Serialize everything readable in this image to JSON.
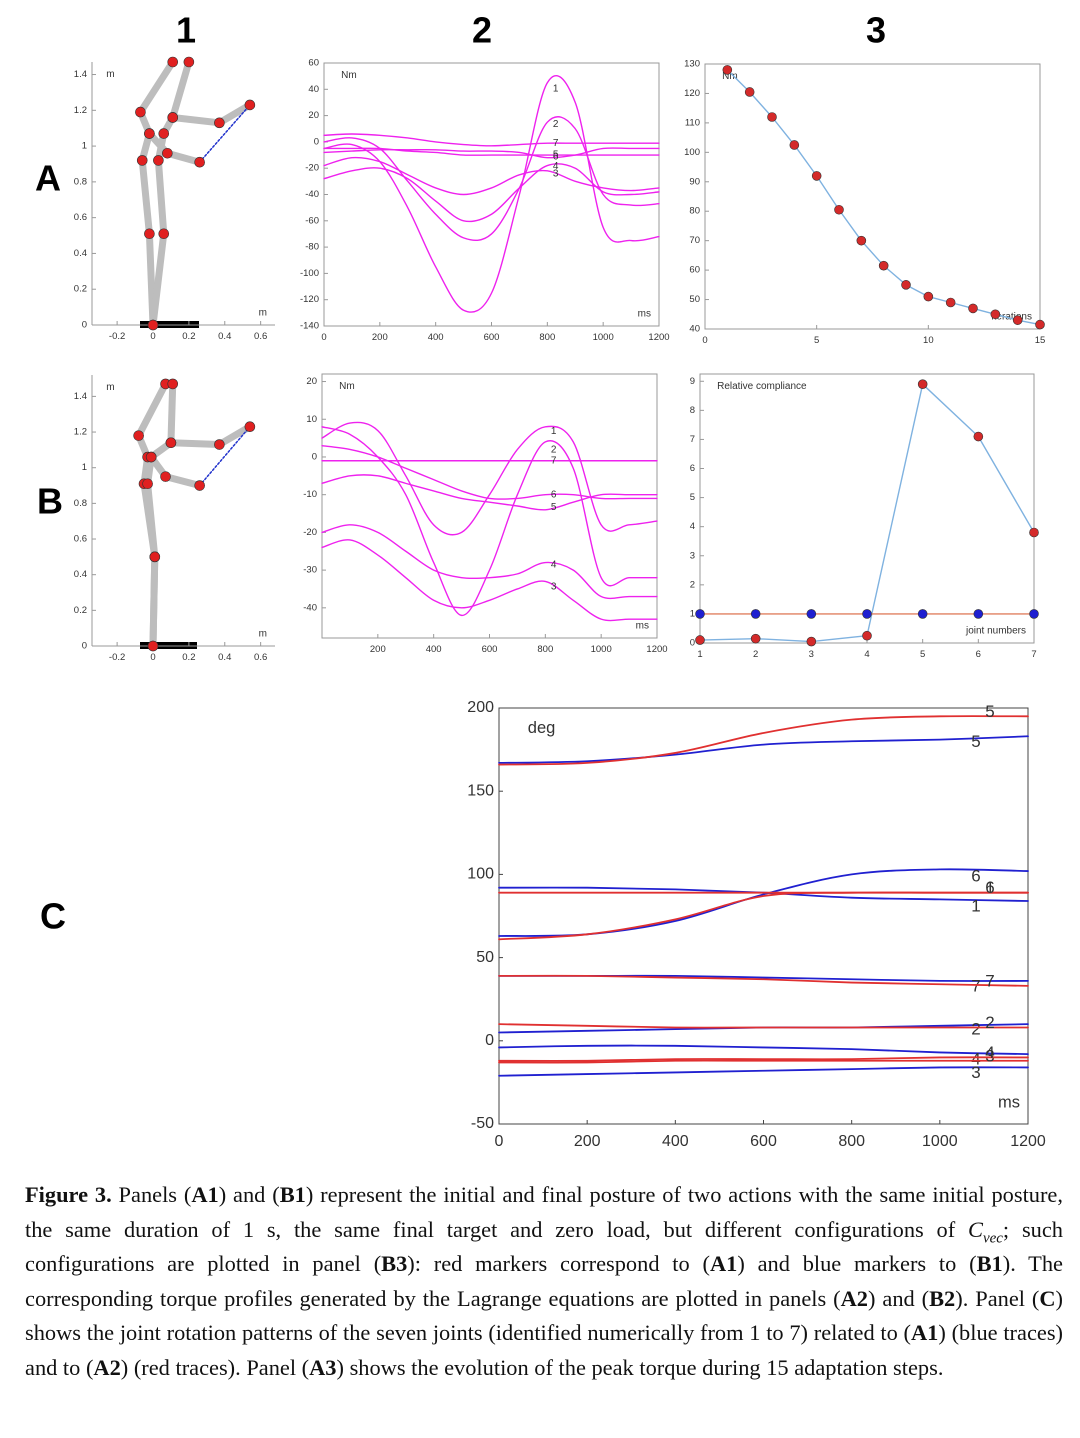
{
  "column_labels": [
    "1",
    "2",
    "3"
  ],
  "row_labels": [
    "A",
    "B",
    "C"
  ],
  "chart_data": [
    {
      "type": "line",
      "xlim": [
        -0.34,
        0.68
      ],
      "ylim": [
        0,
        1.47
      ],
      "xticks": [
        -0.2,
        0,
        0.2,
        0.4,
        0.6
      ],
      "yticks": [
        0,
        0.2,
        0.4,
        0.6,
        0.8,
        1,
        1.2,
        1.4
      ],
      "xlabel": "m",
      "ylabel": "m",
      "box": false,
      "markers": true,
      "line_width": 7,
      "series": [
        {
          "color": "#bdbdbd",
          "marker_color": "#e02020",
          "x": [
            0,
            -0.02,
            -0.06,
            -0.02,
            -0.07,
            0.11
          ],
          "values": [
            0,
            0.51,
            0.92,
            1.07,
            1.19,
            1.47
          ]
        },
        {
          "color": "#bdbdbd",
          "marker_color": "#e02020",
          "x": [
            0,
            0.06,
            0.03,
            0.06,
            0.11,
            0.2
          ],
          "values": [
            0,
            0.51,
            0.92,
            1.07,
            1.16,
            1.47
          ]
        },
        {
          "color": "#bdbdbd",
          "marker_color": "#e02020",
          "x": [
            -0.02,
            0.08,
            0.26
          ],
          "values": [
            1.07,
            0.96,
            0.91
          ]
        },
        {
          "color": "#bdbdbd",
          "marker_color": "#e02020",
          "x": [
            0.11,
            0.37,
            0.54
          ],
          "values": [
            1.16,
            1.13,
            1.23
          ]
        },
        {
          "color": "#2233cc",
          "dash": true,
          "x": [
            0.26,
            0.54
          ],
          "values": [
            0.91,
            1.23
          ]
        }
      ]
    },
    {
      "type": "line",
      "xlim": [
        0,
        1200
      ],
      "ylim": [
        -140,
        60
      ],
      "xticks": [
        0,
        200,
        400,
        600,
        800,
        1000,
        1200
      ],
      "yticks": [
        -140,
        -120,
        -100,
        -80,
        -60,
        -40,
        -20,
        0,
        20,
        40,
        60
      ],
      "xlabel": "ms",
      "ylabel": "Nm",
      "box": true,
      "smooth": true,
      "series_labels": "inline",
      "x": [
        0,
        100,
        200,
        300,
        400,
        500,
        600,
        700,
        800,
        900,
        1000,
        1100,
        1200
      ],
      "series": [
        {
          "name": "1",
          "color": "#ee22ee",
          "values": [
            -5,
            -2,
            -15,
            -50,
            -95,
            -128,
            -115,
            -40,
            45,
            30,
            -65,
            -75,
            -72
          ]
        },
        {
          "name": "2",
          "color": "#ee22ee",
          "values": [
            0,
            3,
            -5,
            -30,
            -55,
            -73,
            -70,
            -35,
            15,
            10,
            -40,
            -48,
            -47
          ]
        },
        {
          "name": "3",
          "color": "#ee22ee",
          "values": [
            -18,
            -12,
            -15,
            -25,
            -35,
            -40,
            -35,
            -25,
            -22,
            -30,
            -35,
            -37,
            -35
          ]
        },
        {
          "name": "4",
          "color": "#ee22ee",
          "values": [
            -28,
            -22,
            -20,
            -28,
            -45,
            -60,
            -55,
            -35,
            -18,
            -20,
            -38,
            -40,
            -38
          ]
        },
        {
          "name": "5",
          "color": "#ee22ee",
          "values": [
            -5,
            -5,
            -5,
            -7,
            -8,
            -10,
            -10,
            -10,
            -10,
            -10,
            -10,
            -10,
            -10
          ]
        },
        {
          "name": "6",
          "color": "#ee22ee",
          "values": [
            -8,
            -7,
            -6,
            -6,
            -6,
            -7,
            -7,
            -8,
            -12,
            -10,
            -5,
            -5,
            -5
          ]
        },
        {
          "name": "7",
          "color": "#ee22ee",
          "values": [
            5,
            6,
            5,
            3,
            0,
            -2,
            -3,
            -2,
            -1,
            -1,
            -1,
            -1,
            -1
          ]
        }
      ]
    },
    {
      "type": "line",
      "xlim": [
        0,
        15
      ],
      "ylim": [
        40,
        130
      ],
      "xticks": [
        0,
        5,
        10,
        15
      ],
      "yticks": [
        40,
        50,
        60,
        70,
        80,
        90,
        100,
        110,
        120,
        130
      ],
      "xlabel": "iterations",
      "ylabel": "Nm",
      "box": true,
      "markers": true,
      "x": [
        1,
        2,
        3,
        4,
        5,
        6,
        7,
        8,
        9,
        10,
        11,
        12,
        13,
        14,
        15
      ],
      "series": [
        {
          "color": "#7fb2e0",
          "marker_color": "#d42a2a",
          "values": [
            128,
            120.5,
            112,
            102.5,
            92,
            80.5,
            70,
            61.5,
            55,
            51,
            49,
            47,
            45,
            43,
            41.5
          ]
        }
      ]
    },
    {
      "type": "line",
      "xlim": [
        -0.34,
        0.68
      ],
      "ylim": [
        0,
        1.52
      ],
      "xticks": [
        -0.2,
        0,
        0.2,
        0.4,
        0.6
      ],
      "yticks": [
        0,
        0.2,
        0.4,
        0.6,
        0.8,
        1,
        1.2,
        1.4
      ],
      "xlabel": "m",
      "ylabel": "m",
      "box": false,
      "markers": true,
      "line_width": 7,
      "series": [
        {
          "color": "#bdbdbd",
          "marker_color": "#e02020",
          "x": [
            0,
            0.01,
            -0.05,
            -0.03,
            -0.08,
            0.07
          ],
          "values": [
            0,
            0.5,
            0.91,
            1.06,
            1.18,
            1.47
          ]
        },
        {
          "color": "#bdbdbd",
          "marker_color": "#e02020",
          "x": [
            0,
            0.01,
            -0.03,
            -0.01,
            0.1,
            0.11
          ],
          "values": [
            0,
            0.5,
            0.91,
            1.06,
            1.14,
            1.47
          ]
        },
        {
          "color": "#bdbdbd",
          "marker_color": "#e02020",
          "x": [
            -0.01,
            0.07,
            0.26
          ],
          "values": [
            1.06,
            0.95,
            0.9
          ]
        },
        {
          "color": "#bdbdbd",
          "marker_color": "#e02020",
          "x": [
            0.1,
            0.37,
            0.54
          ],
          "values": [
            1.14,
            1.13,
            1.23
          ]
        },
        {
          "color": "#2233cc",
          "dash": true,
          "x": [
            0.26,
            0.54
          ],
          "values": [
            0.9,
            1.23
          ]
        }
      ]
    },
    {
      "type": "line",
      "xlim": [
        0,
        1200
      ],
      "ylim": [
        -48,
        22
      ],
      "xticks": [
        200,
        400,
        600,
        800,
        1000,
        1200
      ],
      "yticks": [
        -40,
        -30,
        -20,
        -10,
        0,
        10,
        20
      ],
      "xlabel": "ms",
      "ylabel": "Nm",
      "box": true,
      "smooth": true,
      "series_labels": "inline",
      "x": [
        0,
        100,
        200,
        300,
        400,
        500,
        600,
        700,
        800,
        900,
        1000,
        1100,
        1200
      ],
      "series": [
        {
          "name": "1",
          "color": "#ee22ee",
          "values": [
            5,
            9,
            7,
            -5,
            -18,
            -20,
            -10,
            2,
            8,
            4,
            -18,
            -18,
            -17
          ]
        },
        {
          "name": "2",
          "color": "#ee22ee",
          "values": [
            8,
            6,
            0,
            -10,
            -28,
            -42,
            -30,
            -10,
            4,
            -3,
            -32,
            -32,
            -32
          ]
        },
        {
          "name": "3",
          "color": "#ee22ee",
          "values": [
            -24,
            -22,
            -26,
            -32,
            -38,
            -40,
            -38,
            -35,
            -33,
            -38,
            -43,
            -43,
            -43
          ]
        },
        {
          "name": "4",
          "color": "#ee22ee",
          "values": [
            -20,
            -18,
            -20,
            -25,
            -30,
            -32,
            -32,
            -31,
            -28,
            -30,
            -37,
            -37,
            -37
          ]
        },
        {
          "name": "5",
          "color": "#ee22ee",
          "values": [
            -7,
            -5,
            -5,
            -7,
            -9,
            -11,
            -12,
            -13,
            -14,
            -12,
            -10,
            -10,
            -10
          ]
        },
        {
          "name": "6",
          "color": "#ee22ee",
          "values": [
            3,
            2,
            0,
            -3,
            -6,
            -9,
            -11,
            -11,
            -10,
            -10,
            -11,
            -11,
            -11
          ]
        },
        {
          "name": "7",
          "color": "#ee22ee",
          "values": [
            -1,
            -1,
            -1,
            -1,
            -1,
            -1,
            -1,
            -1,
            -1,
            -1,
            -1,
            -1,
            -1
          ]
        }
      ]
    },
    {
      "type": "line",
      "xlim": [
        1,
        7
      ],
      "ylim": [
        0,
        9.25
      ],
      "xticks": [
        1,
        2,
        3,
        4,
        5,
        6,
        7
      ],
      "yticks": [
        0,
        1,
        2,
        3,
        4,
        5,
        6,
        7,
        8,
        9
      ],
      "xlabel": "joint numbers",
      "ylabel": "Relative compliance",
      "box": true,
      "markers": true,
      "x": [
        1,
        2,
        3,
        4,
        5,
        6,
        7
      ],
      "series": [
        {
          "color": "#7fb2e0",
          "marker_color": "#d42a2a",
          "values": [
            0.1,
            0.15,
            0.05,
            0.25,
            8.9,
            7.1,
            3.8
          ]
        },
        {
          "color": "#e08060",
          "marker_color": "#1f1fd0",
          "values": [
            1,
            1,
            1,
            1,
            1,
            1,
            1
          ]
        }
      ]
    },
    {
      "type": "line",
      "xlim": [
        0,
        1200
      ],
      "ylim": [
        -50,
        200
      ],
      "xticks": [
        0,
        200,
        400,
        600,
        800,
        1000,
        1200
      ],
      "yticks": [
        -50,
        0,
        50,
        100,
        150,
        200
      ],
      "xlabel": "ms",
      "ylabel": "deg",
      "box": true,
      "smooth": true,
      "series_labels": "end",
      "x": [
        0,
        200,
        400,
        600,
        800,
        1000,
        1200
      ],
      "series": [
        {
          "name": "1",
          "color": "#2020d0",
          "values": [
            92,
            92,
            91,
            89,
            86,
            85,
            84
          ]
        },
        {
          "name": "2",
          "color": "#2020d0",
          "values": [
            5,
            6,
            7,
            8,
            8,
            9,
            10
          ]
        },
        {
          "name": "3",
          "color": "#2020d0",
          "values": [
            -21,
            -20,
            -19,
            -18,
            -17,
            -16,
            -16
          ]
        },
        {
          "name": "4",
          "color": "#2020d0",
          "values": [
            -4,
            -3,
            -3,
            -4,
            -5,
            -7,
            -8
          ]
        },
        {
          "name": "5",
          "color": "#2020d0",
          "values": [
            167,
            168,
            172,
            178,
            180,
            181,
            183
          ]
        },
        {
          "name": "6",
          "color": "#2020d0",
          "values": [
            63,
            64,
            72,
            88,
            100,
            103,
            102
          ]
        },
        {
          "name": "7",
          "color": "#2020d0",
          "values": [
            39,
            39,
            39,
            38,
            37,
            36,
            36
          ]
        },
        {
          "name": "1",
          "color": "#e03030",
          "values": [
            89,
            89,
            89,
            89,
            89,
            89,
            89
          ]
        },
        {
          "name": "2",
          "color": "#e03030",
          "values": [
            10,
            9,
            8,
            8,
            8,
            8,
            8
          ]
        },
        {
          "name": "3",
          "color": "#e03030",
          "values": [
            -13,
            -13,
            -12,
            -12,
            -12,
            -12,
            -12
          ]
        },
        {
          "name": "4",
          "color": "#e03030",
          "values": [
            -12,
            -12,
            -11,
            -11,
            -11,
            -10,
            -10
          ]
        },
        {
          "name": "5",
          "color": "#e03030",
          "values": [
            166,
            167,
            173,
            185,
            193,
            195,
            195
          ]
        },
        {
          "name": "6",
          "color": "#e03030",
          "values": [
            61,
            64,
            73,
            87,
            89,
            89,
            89
          ]
        },
        {
          "name": "7",
          "color": "#e03030",
          "values": [
            39,
            39,
            38,
            37,
            35,
            34,
            33
          ]
        }
      ]
    }
  ],
  "caption": [
    {
      "text": "Figure 3.",
      "style": "bold"
    },
    {
      "text": " Panels ("
    },
    {
      "text": "A1",
      "style": "bold"
    },
    {
      "text": ") and ("
    },
    {
      "text": "B1",
      "style": "bold"
    },
    {
      "text": ") represent the initial and final posture of two actions with the same initial posture, the same duration of 1 s, the same final target and zero load, but different configurations of "
    },
    {
      "text": "C",
      "style": "italic"
    },
    {
      "text": "vec",
      "style": "sub"
    },
    {
      "text": "; such configurations are plotted in panel ("
    },
    {
      "text": "B3",
      "style": "bold"
    },
    {
      "text": "): red markers correspond to ("
    },
    {
      "text": "A1",
      "style": "bold"
    },
    {
      "text": ") and blue markers to ("
    },
    {
      "text": "B1",
      "style": "bold"
    },
    {
      "text": "). The corresponding torque profiles generated by the Lagrange equations are plotted in panels ("
    },
    {
      "text": "A2",
      "style": "bold"
    },
    {
      "text": ") and ("
    },
    {
      "text": "B2",
      "style": "bold"
    },
    {
      "text": "). Panel ("
    },
    {
      "text": "C",
      "style": "bold"
    },
    {
      "text": ") shows the joint rotation patterns of the seven joints (identified numerically from 1 to 7) related to ("
    },
    {
      "text": "A1",
      "style": "bold"
    },
    {
      "text": ") (blue traces) and to ("
    },
    {
      "text": "A2",
      "style": "bold"
    },
    {
      "text": ") (red traces). Panel ("
    },
    {
      "text": "A3",
      "style": "bold"
    },
    {
      "text": ") shows the evolution of the peak torque during 15 adaptation steps."
    }
  ]
}
